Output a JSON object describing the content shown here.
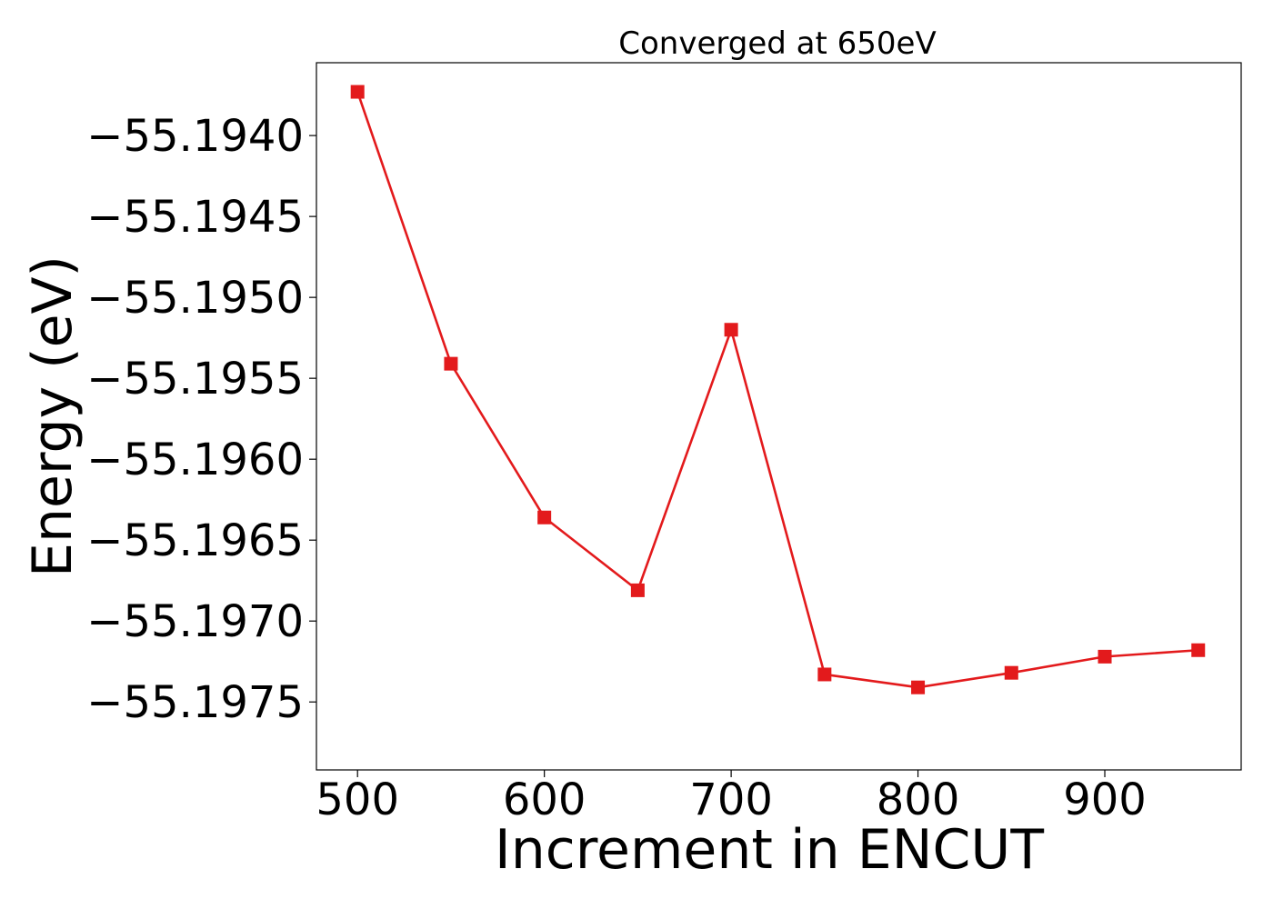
{
  "chart_data": {
    "type": "line",
    "title": "Converged at 650eV",
    "xlabel": "Increment in ENCUT",
    "ylabel": "Energy (eV)",
    "x": [
      500,
      550,
      600,
      650,
      700,
      750,
      800,
      850,
      900,
      950
    ],
    "series": [
      {
        "values": [
          -55.19373,
          -55.19541,
          -55.19636,
          -55.19681,
          -55.1952,
          -55.19733,
          -55.19741,
          -55.19732,
          -55.19722,
          -55.19718
        ],
        "color": "#e31a1c",
        "marker": "square"
      }
    ],
    "xlim": [
      478,
      973
    ],
    "ylim": [
      -55.19792,
      -55.19355
    ],
    "xticks": [
      500,
      600,
      700,
      800,
      900
    ],
    "xtick_labels": [
      "500",
      "600",
      "700",
      "800",
      "900"
    ],
    "yticks": [
      -55.194,
      -55.1945,
      -55.195,
      -55.1955,
      -55.196,
      -55.1965,
      -55.197,
      -55.1975
    ],
    "ytick_labels": [
      "−55.1940",
      "−55.1945",
      "−55.1950",
      "−55.1955",
      "−55.1960",
      "−55.1965",
      "−55.1970",
      "−55.1975"
    ],
    "grid": false,
    "legend": "none"
  }
}
